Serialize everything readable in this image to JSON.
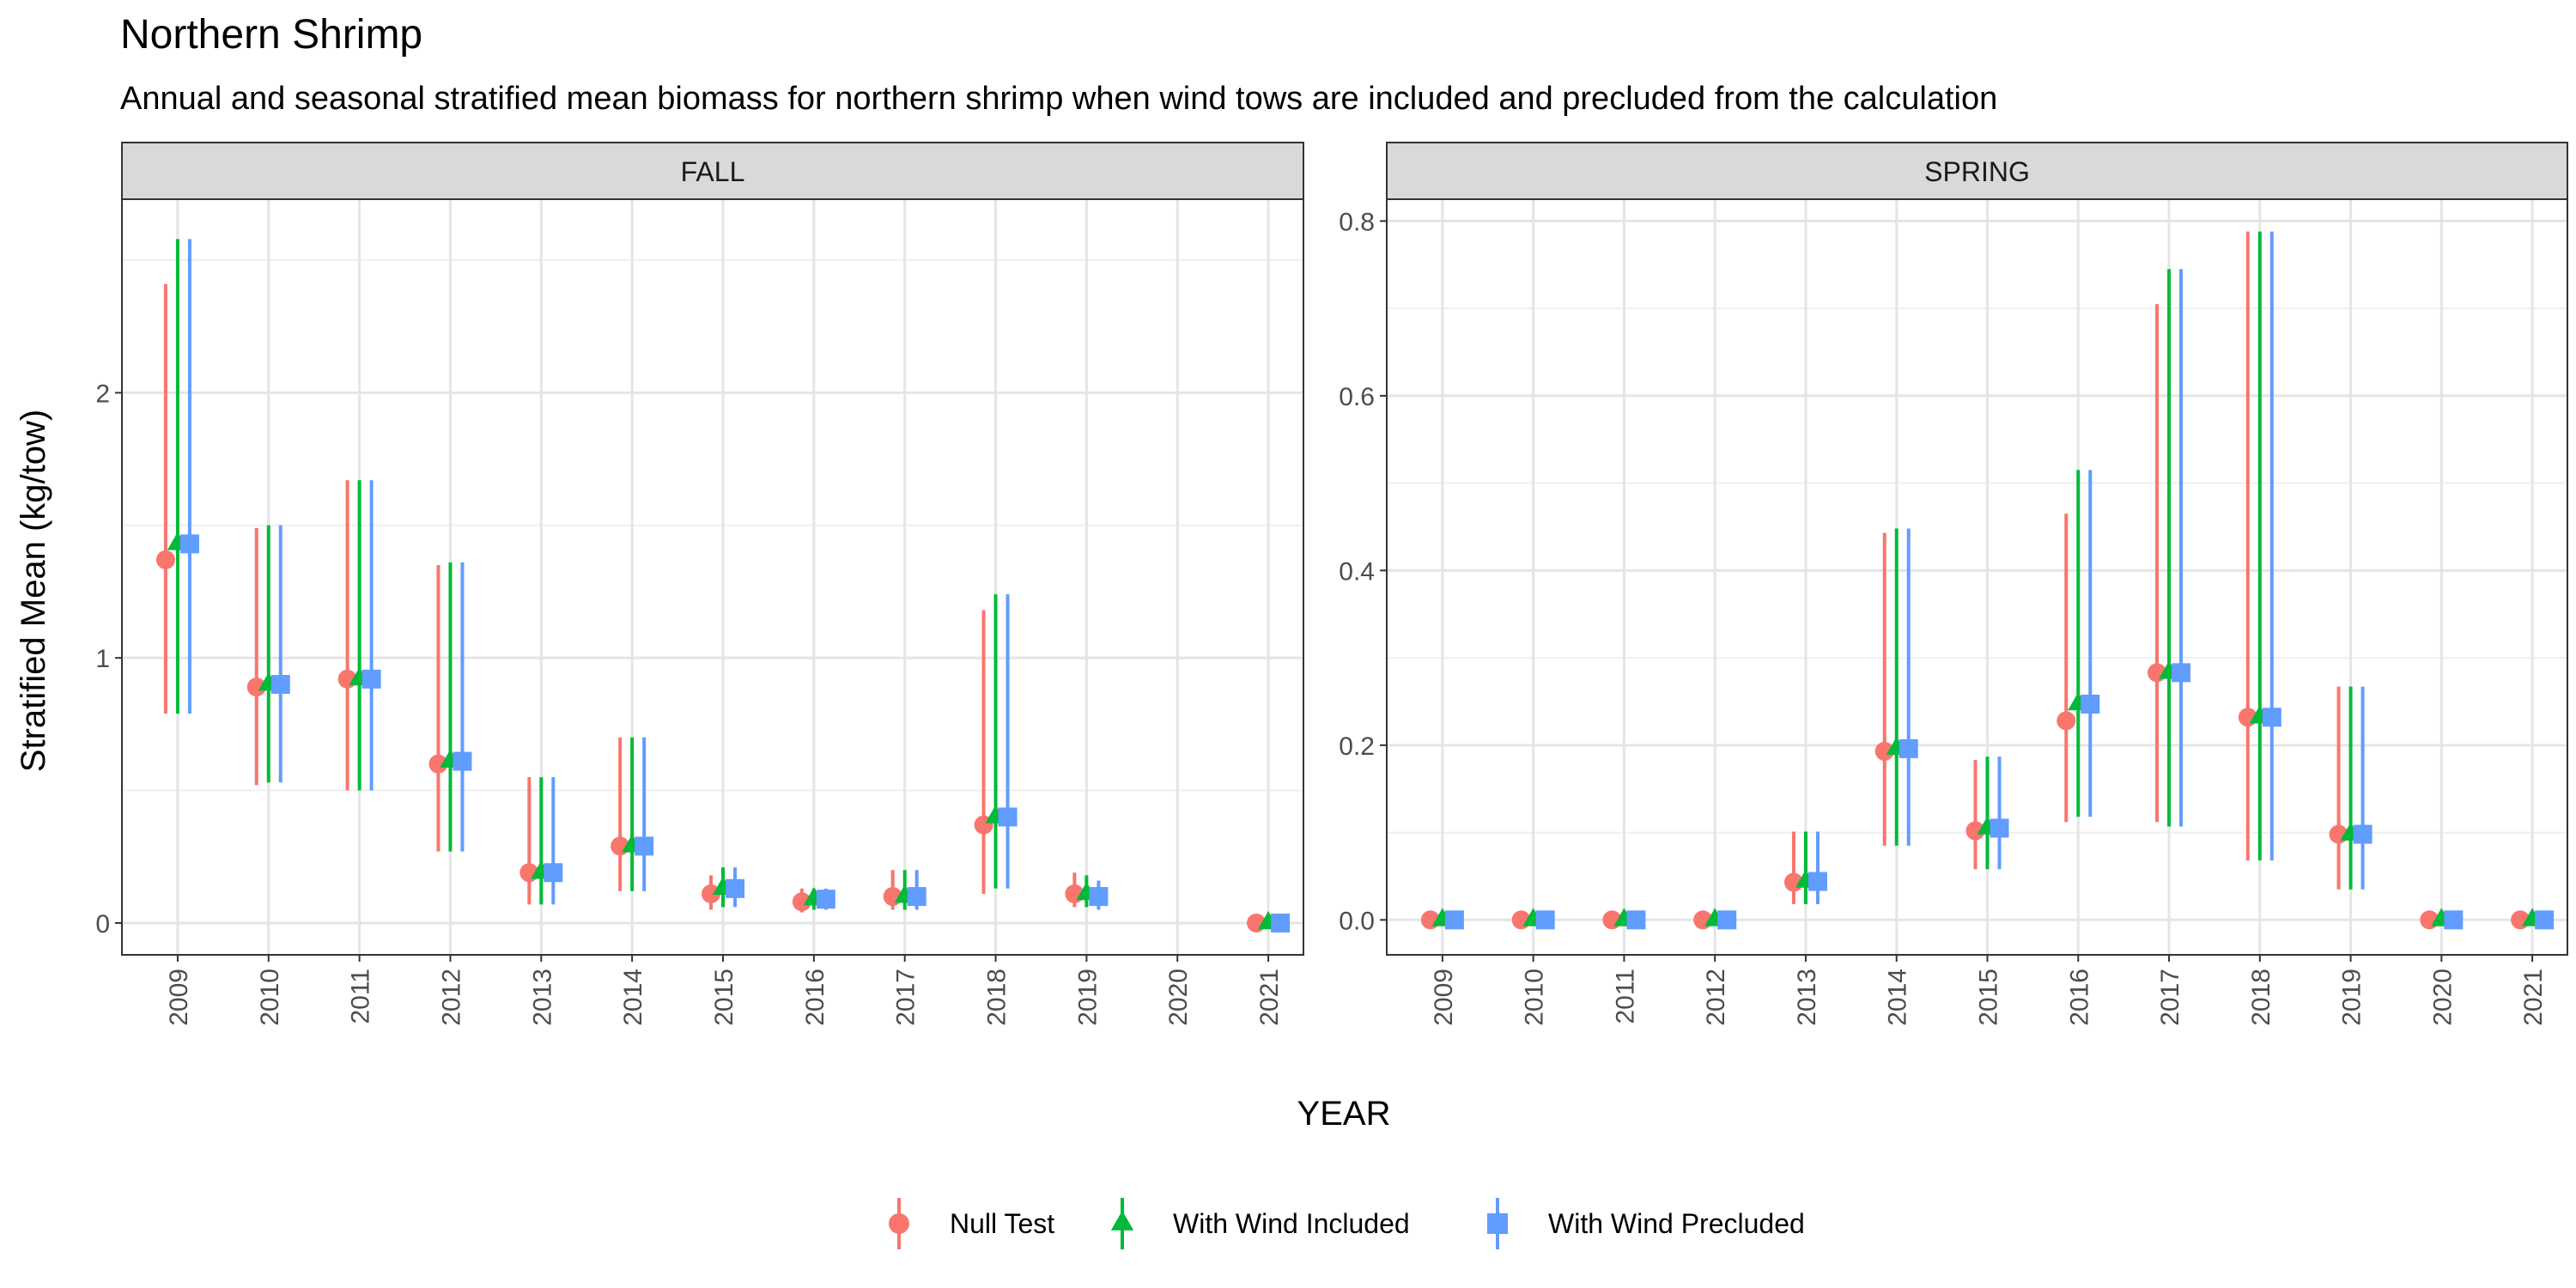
{
  "chart_data": {
    "type": "scatter",
    "title": "Northern Shrimp",
    "subtitle": "Annual and seasonal stratified mean biomass for northern shrimp when wind tows are included and precluded from the calculation",
    "xlabel": "YEAR",
    "ylabel": "Stratified Mean (kg/tow)",
    "grid": true,
    "legend_position": "bottom",
    "categories": [
      "2009",
      "2010",
      "2011",
      "2012",
      "2013",
      "2014",
      "2015",
      "2016",
      "2017",
      "2018",
      "2019",
      "2020",
      "2021"
    ],
    "series_styles": [
      {
        "name": "Null Test",
        "color": "#F8766D",
        "shape": "circle"
      },
      {
        "name": "With Wind Included",
        "color": "#00BA38",
        "shape": "triangle"
      },
      {
        "name": "With Wind Precluded",
        "color": "#619CFF",
        "shape": "square"
      }
    ],
    "panels": [
      {
        "label": "FALL",
        "ylim": [
          -0.12,
          2.73
        ],
        "yticks": [
          0,
          1,
          2
        ],
        "ytick_labels": [
          "0",
          "1",
          "2"
        ],
        "series": [
          {
            "name": "Null Test",
            "values": [
              1.37,
              0.89,
              0.92,
              0.6,
              0.19,
              0.29,
              0.11,
              0.08,
              0.1,
              0.37,
              0.11,
              null,
              0.0
            ],
            "lower": [
              0.79,
              0.52,
              0.5,
              0.27,
              0.07,
              0.12,
              0.05,
              0.04,
              0.05,
              0.11,
              0.06,
              null,
              0.0
            ],
            "upper": [
              2.41,
              1.49,
              1.67,
              1.35,
              0.55,
              0.7,
              0.18,
              0.13,
              0.2,
              1.18,
              0.19,
              null,
              0.0
            ]
          },
          {
            "name": "With Wind Included",
            "values": [
              1.43,
              0.9,
              0.92,
              0.61,
              0.19,
              0.29,
              0.13,
              0.09,
              0.1,
              0.4,
              0.11,
              null,
              0.0
            ],
            "lower": [
              0.79,
              0.53,
              0.5,
              0.27,
              0.07,
              0.12,
              0.06,
              0.05,
              0.05,
              0.13,
              0.06,
              null,
              0.0
            ],
            "upper": [
              2.58,
              1.5,
              1.67,
              1.36,
              0.55,
              0.7,
              0.21,
              0.13,
              0.2,
              1.24,
              0.18,
              null,
              0.0
            ]
          },
          {
            "name": "With Wind Precluded",
            "values": [
              1.43,
              0.9,
              0.92,
              0.61,
              0.19,
              0.29,
              0.13,
              0.09,
              0.1,
              0.4,
              0.1,
              null,
              0.0
            ],
            "lower": [
              0.79,
              0.53,
              0.5,
              0.27,
              0.07,
              0.12,
              0.06,
              0.05,
              0.05,
              0.13,
              0.05,
              null,
              0.0
            ],
            "upper": [
              2.58,
              1.5,
              1.67,
              1.36,
              0.55,
              0.7,
              0.21,
              0.13,
              0.2,
              1.24,
              0.16,
              null,
              0.0
            ]
          }
        ]
      },
      {
        "label": "SPRING",
        "ylim": [
          -0.04,
          0.825
        ],
        "yticks": [
          0.0,
          0.2,
          0.4,
          0.6,
          0.8
        ],
        "ytick_labels": [
          "0.0",
          "0.2",
          "0.4",
          "0.6",
          "0.8"
        ],
        "series": [
          {
            "name": "Null Test",
            "values": [
              0.0,
              0.0,
              0.0,
              0.0,
              0.043,
              0.193,
              0.102,
              0.228,
              0.283,
              0.232,
              0.098,
              0.0,
              0.0
            ],
            "lower": [
              0.0,
              0.0,
              0.0,
              0.0,
              0.018,
              0.085,
              0.058,
              0.112,
              0.112,
              0.068,
              0.035,
              0.0,
              0.0
            ],
            "upper": [
              0.0,
              0.0,
              0.0,
              0.0,
              0.101,
              0.443,
              0.183,
              0.465,
              0.705,
              0.788,
              0.267,
              0.0,
              0.0
            ]
          },
          {
            "name": "With Wind Included",
            "values": [
              0.0,
              0.0,
              0.0,
              0.0,
              0.044,
              0.196,
              0.105,
              0.247,
              0.283,
              0.232,
              0.098,
              0.0,
              0.0
            ],
            "lower": [
              0.0,
              0.0,
              0.0,
              0.0,
              0.018,
              0.085,
              0.058,
              0.118,
              0.107,
              0.068,
              0.035,
              0.0,
              0.0
            ],
            "upper": [
              0.0,
              0.0,
              0.0,
              0.0,
              0.101,
              0.448,
              0.187,
              0.515,
              0.745,
              0.788,
              0.267,
              0.0,
              0.0
            ]
          },
          {
            "name": "With Wind Precluded",
            "values": [
              0.0,
              0.0,
              0.0,
              0.0,
              0.044,
              0.196,
              0.105,
              0.247,
              0.283,
              0.232,
              0.098,
              0.0,
              0.0
            ],
            "lower": [
              0.0,
              0.0,
              0.0,
              0.0,
              0.018,
              0.085,
              0.058,
              0.118,
              0.107,
              0.068,
              0.035,
              0.0,
              0.0
            ],
            "upper": [
              0.0,
              0.0,
              0.0,
              0.0,
              0.101,
              0.448,
              0.187,
              0.515,
              0.745,
              0.788,
              0.267,
              0.0,
              0.0
            ]
          }
        ]
      }
    ]
  }
}
